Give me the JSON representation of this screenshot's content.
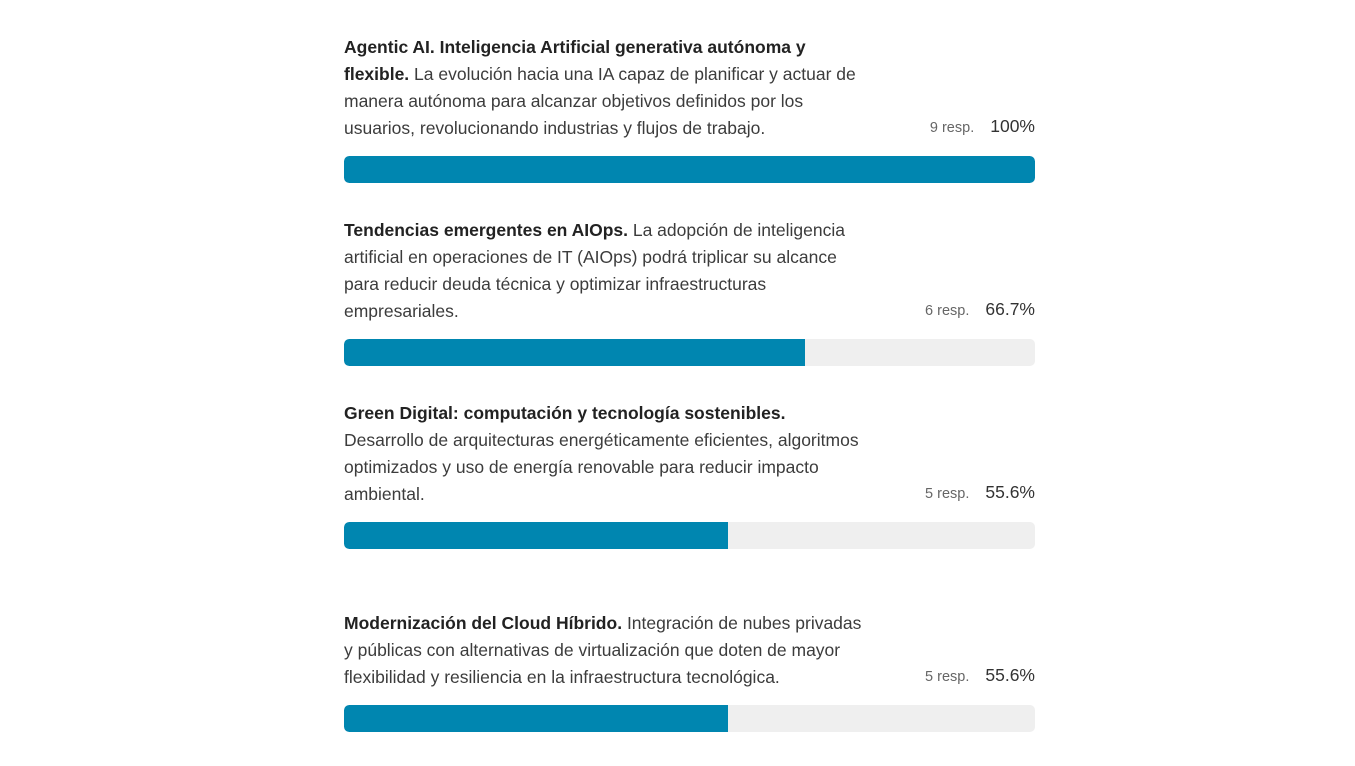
{
  "options": [
    {
      "title": "Agentic AI. Inteligencia Artificial generativa autónoma y flexible.",
      "description": "La evolución hacia una IA capaz de planificar y actuar de manera autónoma para alcanzar objetivos definidos por los usuarios, revolucionando industrias y flujos de trabajo.",
      "responses": "9 resp.",
      "percent_label": "100%",
      "fraction": 1.0
    },
    {
      "title": "Tendencias emergentes en AIOps.",
      "description": "La adopción de inteligencia artificial en operaciones de IT (AIOps) podrá triplicar su alcance para reducir deuda técnica y optimizar infraestructuras empresariales.",
      "responses": "6 resp.",
      "percent_label": "66.7%",
      "fraction": 0.667
    },
    {
      "title": "Green Digital: computación y tecnología sostenibles.",
      "description": "Desarrollo de arquitecturas energéticamente eficientes, algoritmos optimizados y uso de energía renovable para reducir impacto ambiental.",
      "responses": "5 resp.",
      "percent_label": "55.6%",
      "fraction": 0.556
    },
    {
      "title": "Modernización del Cloud Híbrido.",
      "description": "Integración de nubes privadas y públicas con alternativas de virtualización que doten de mayor flexibilidad y resiliencia en la infraestructura tecnológica.",
      "responses": "5 resp.",
      "percent_label": "55.6%",
      "fraction": 0.556
    }
  ],
  "colors": {
    "bar_fill": "#0086b0",
    "bar_track": "#efefef"
  }
}
